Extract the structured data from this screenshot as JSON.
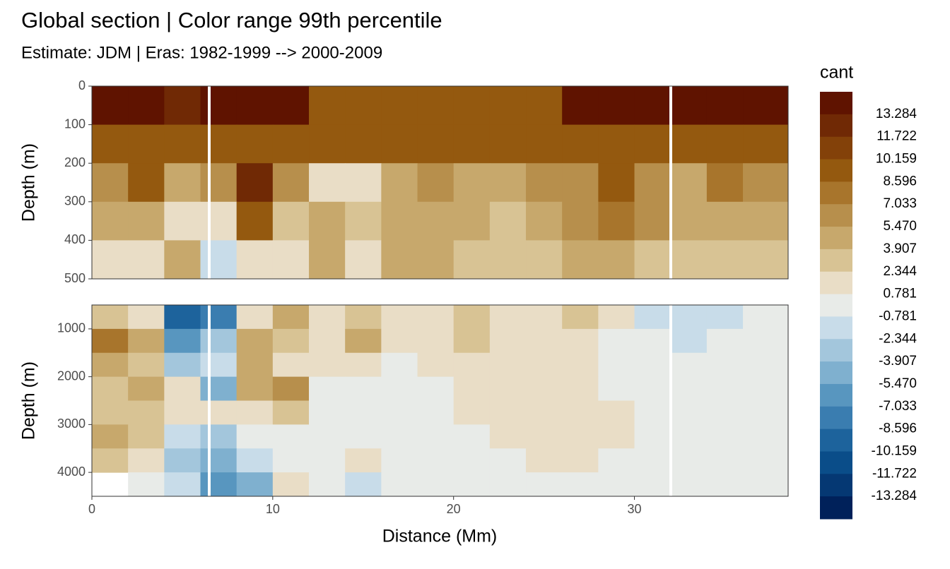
{
  "chart_data": {
    "type": "contour",
    "title": "Global section | Color range 99th percentile",
    "subtitle": "Estimate: JDM  | Eras: 1982-1999 --> 2000-2009",
    "x_label": "Distance (Mm)",
    "xlim": [
      0,
      38.5
    ],
    "xticks": [
      0,
      10,
      20,
      30
    ],
    "x": [
      1,
      3,
      5,
      7,
      9,
      11,
      13,
      15,
      17,
      19,
      21,
      23,
      25,
      27,
      29,
      31,
      33,
      35,
      37
    ],
    "panels": [
      {
        "y_label": "Depth (m)",
        "ylim": [
          500,
          0
        ],
        "yticks": [
          0,
          100,
          200,
          300,
          400,
          500
        ],
        "depth": [
          50,
          150,
          250,
          350,
          450
        ],
        "values": [
          [
            14,
            14,
            12,
            14,
            14,
            14,
            9.4,
            9.4,
            9.4,
            9.4,
            9.4,
            9.4,
            9.4,
            14,
            14,
            14,
            14,
            14,
            14
          ],
          [
            9,
            9,
            9,
            9,
            9,
            9,
            9,
            9,
            9,
            9,
            9,
            9,
            9,
            10,
            10,
            10,
            9,
            9,
            9
          ],
          [
            7,
            10,
            4,
            6,
            12,
            6,
            2,
            1,
            5,
            6,
            4,
            5,
            6,
            7,
            9,
            6,
            5,
            8,
            6
          ],
          [
            4,
            5,
            2,
            1,
            9,
            3,
            4,
            3,
            5,
            5,
            4,
            3,
            5,
            6,
            8,
            6,
            4,
            5,
            4
          ],
          [
            2,
            2,
            4,
            -1,
            2,
            1,
            4,
            2,
            4,
            4,
            3,
            3,
            3,
            5,
            5,
            3,
            3,
            3,
            3
          ]
        ]
      },
      {
        "y_label": "Depth (m)",
        "ylim": [
          4500,
          500
        ],
        "yticks": [
          1000,
          2000,
          3000,
          4000
        ],
        "depth": [
          750,
          1250,
          1750,
          2250,
          2750,
          3250,
          3750,
          4250
        ],
        "values": [
          [
            3,
            1,
            -10,
            -8,
            2,
            4,
            2,
            3,
            2,
            2,
            3,
            2,
            2,
            3,
            1,
            -1,
            -2,
            -1,
            0
          ],
          [
            8,
            4,
            -6,
            -3,
            5,
            3,
            2,
            4,
            2,
            2,
            3,
            2,
            2,
            1,
            0,
            0,
            -1,
            0,
            0
          ],
          [
            5,
            3,
            -3,
            -2,
            4,
            2,
            2,
            1,
            0,
            1,
            2,
            2,
            1,
            1,
            0,
            0,
            0,
            0,
            0
          ],
          [
            3,
            5,
            1,
            -5,
            4,
            6,
            0,
            0,
            0,
            0,
            2,
            1,
            2,
            1,
            0,
            0,
            0,
            0,
            0
          ],
          [
            3,
            3,
            2,
            1,
            2,
            3,
            0,
            0,
            0,
            0,
            1,
            1,
            2,
            1,
            1,
            0,
            0,
            0,
            0
          ],
          [
            5,
            3,
            -1,
            -3,
            0,
            0,
            0,
            0,
            0,
            0,
            0,
            1,
            2,
            2,
            1,
            0,
            0,
            0,
            0
          ],
          [
            3,
            2,
            -3,
            -4,
            -2,
            0,
            0,
            1,
            0,
            0,
            0,
            0,
            1,
            2,
            0,
            0,
            0,
            0,
            0
          ],
          [
            null,
            0,
            -2,
            -6,
            -4,
            1,
            0,
            -1,
            0,
            0,
            0,
            0,
            0,
            0,
            0,
            0,
            0,
            0,
            0
          ]
        ]
      }
    ],
    "colorbar": {
      "title": "cant",
      "limits": [
        14.847,
        -14.847
      ],
      "breaks": [
        13.284,
        11.722,
        10.159,
        8.596,
        7.033,
        5.47,
        3.907,
        2.344,
        0.781,
        -0.781,
        -2.344,
        -3.907,
        -5.47,
        -7.033,
        -8.596,
        -10.159,
        -11.722,
        -13.284
      ],
      "break_labels": [
        "13.284",
        "11.722",
        "10.159",
        "8.596",
        "7.033",
        "5.470",
        "3.907",
        "2.344",
        "0.781",
        "-0.781",
        "-2.344",
        "-3.907",
        "-5.470",
        "-7.033",
        "-8.596",
        "-10.159",
        "-11.722",
        "-13.284"
      ],
      "colors": [
        "#5f1300",
        "#702905",
        "#834109",
        "#94590f",
        "#a8752c",
        "#b78f4c",
        "#c7a86c",
        "#d8c394",
        "#e9ddc6",
        "#e8ebe8",
        "#c8dce9",
        "#a3c6dc",
        "#7fb0cf",
        "#5896bf",
        "#3a7db0",
        "#1d639c",
        "#0a4d89",
        "#053873",
        "#00215a"
      ]
    }
  }
}
